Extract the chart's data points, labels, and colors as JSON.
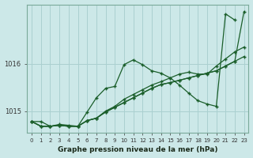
{
  "title": "Graphe pression niveau de la mer (hPa)",
  "xlabel_ticks": [
    0,
    1,
    2,
    3,
    4,
    5,
    6,
    7,
    8,
    9,
    10,
    11,
    12,
    13,
    14,
    15,
    16,
    17,
    18,
    19,
    20,
    21,
    22,
    23
  ],
  "ylim": [
    1014.55,
    1017.25
  ],
  "yticks": [
    1015,
    1016
  ],
  "bg_color": "#cce8e8",
  "grid_color": "#aad0d0",
  "line_color": "#1a5e2a",
  "series": [
    [
      1014.78,
      1014.78,
      1014.68,
      1014.72,
      1014.7,
      1014.68,
      1014.98,
      1015.28,
      1015.48,
      1015.52,
      1015.98,
      1016.08,
      1015.98,
      1015.85,
      1015.8,
      1015.7,
      1015.55,
      1015.38,
      1015.22,
      1015.15,
      1015.1,
      1017.05,
      1016.92,
      null
    ],
    [
      1014.78,
      1014.68,
      1014.68,
      1014.7,
      1014.68,
      1014.68,
      1014.8,
      1014.85,
      1014.98,
      1015.08,
      1015.18,
      1015.28,
      1015.38,
      1015.48,
      1015.56,
      1015.6,
      1015.65,
      1015.7,
      1015.75,
      1015.8,
      1015.85,
      1015.95,
      1016.05,
      1016.15
    ],
    [
      1014.78,
      1014.68,
      1014.68,
      1014.7,
      1014.68,
      1014.68,
      1014.8,
      1014.85,
      1015.0,
      1015.1,
      1015.25,
      1015.35,
      1015.45,
      1015.55,
      1015.62,
      1015.7,
      1015.78,
      1015.82,
      1015.78,
      1015.78,
      1015.95,
      1016.1,
      1016.25,
      1016.35
    ],
    [
      1014.78,
      1014.68,
      1014.68,
      1014.7,
      1014.68,
      1014.68,
      1014.8,
      1014.85,
      1014.98,
      1015.08,
      1015.18,
      1015.28,
      1015.38,
      1015.48,
      1015.56,
      1015.6,
      1015.65,
      1015.7,
      1015.75,
      1015.8,
      1015.85,
      1015.95,
      1016.05,
      1017.1
    ]
  ]
}
